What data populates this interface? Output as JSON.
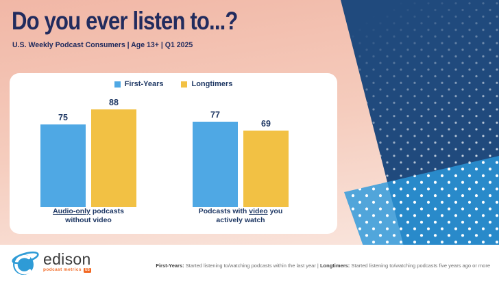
{
  "header": {
    "title": "Do you ever listen to...?",
    "subtitle": "U.S. Weekly Podcast Consumers | Age 13+ | Q1 2025"
  },
  "colors": {
    "title_navy": "#222C5E",
    "label_navy": "#1F3864",
    "first_years_blue": "#4FA8E4",
    "longtimers_yellow": "#F2C144",
    "background_peach_top": "#F1B7A6",
    "background_peach_bottom": "#FBEDE7",
    "shape_navy": "#204A7D",
    "shape_light_blue": "#2C98DC",
    "edison_orange": "#F26822"
  },
  "chart_data": {
    "type": "bar",
    "title": "Do you ever listen to...?",
    "categories": [
      "Audio-only podcasts without video",
      "Podcasts with video you actively watch"
    ],
    "series": [
      {
        "name": "First-Years",
        "color": "#4FA8E4",
        "values": [
          75,
          77
        ]
      },
      {
        "name": "Longtimers",
        "color": "#F2C144",
        "values": [
          88,
          69
        ]
      }
    ],
    "ylim": [
      0,
      100
    ],
    "value_labels": [
      [
        75,
        88
      ],
      [
        77,
        69
      ]
    ],
    "legend_position": "top",
    "grid": false,
    "category_lines": [
      [
        [
          {
            "text": "Audio-only",
            "underline": true
          },
          {
            "text": " podcasts",
            "underline": false
          }
        ],
        [
          {
            "text": "without video",
            "underline": false
          }
        ]
      ],
      [
        [
          {
            "text": "Podcasts with ",
            "underline": false
          },
          {
            "text": "video",
            "underline": true
          },
          {
            "text": " you",
            "underline": false
          }
        ],
        [
          {
            "text": "actively watch",
            "underline": false
          }
        ]
      ]
    ]
  },
  "footer": {
    "logo": {
      "name": "edison",
      "tagline": "podcast metrics",
      "badge": "US"
    },
    "note_parts": [
      {
        "text": "First-Years:",
        "bold": true
      },
      {
        "text": " Started listening to/watching podcasts within the last year  |  ",
        "bold": false
      },
      {
        "text": "Longtimers:",
        "bold": true
      },
      {
        "text": " Started listening to/watching podcasts five years ago or more",
        "bold": false
      }
    ]
  }
}
